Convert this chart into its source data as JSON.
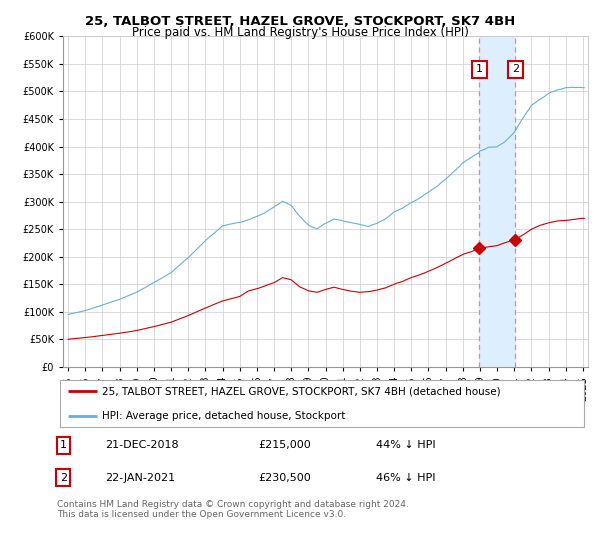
{
  "title": "25, TALBOT STREET, HAZEL GROVE, STOCKPORT, SK7 4BH",
  "subtitle": "Price paid vs. HM Land Registry's House Price Index (HPI)",
  "legend_entry1": "25, TALBOT STREET, HAZEL GROVE, STOCKPORT, SK7 4BH (detached house)",
  "legend_entry2": "HPI: Average price, detached house, Stockport",
  "annotation1_date": "21-DEC-2018",
  "annotation1_price": "£215,000",
  "annotation1_hpi": "44% ↓ HPI",
  "annotation2_date": "22-JAN-2021",
  "annotation2_price": "£230,500",
  "annotation2_hpi": "46% ↓ HPI",
  "footnote": "Contains HM Land Registry data © Crown copyright and database right 2024.\nThis data is licensed under the Open Government Licence v3.0.",
  "hpi_color": "#6baed6",
  "price_color": "#cc0000",
  "shaded_color": "#ddeeff",
  "ylim": [
    0,
    600000
  ],
  "yticks": [
    0,
    50000,
    100000,
    150000,
    200000,
    250000,
    300000,
    350000,
    400000,
    450000,
    500000,
    550000,
    600000
  ],
  "transaction1_year": 2018.97,
  "transaction2_year": 2021.06,
  "transaction1_price": 215000,
  "transaction2_price": 230500
}
